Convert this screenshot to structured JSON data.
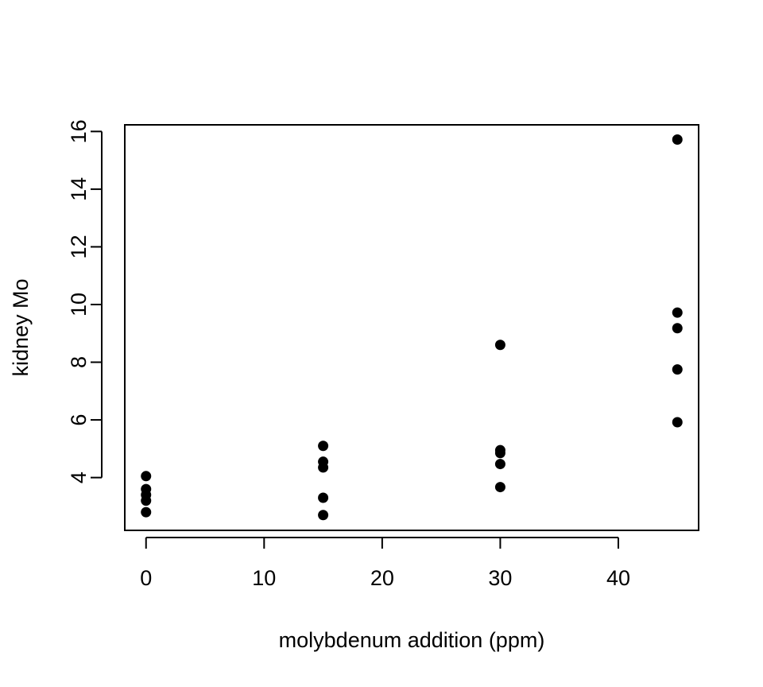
{
  "chart_data": {
    "type": "scatter",
    "title": "",
    "xlabel": "molybdenum addition (ppm)",
    "ylabel": "kidney Mo",
    "xlim": [
      -1.8,
      46.8
    ],
    "ylim": [
      2.17,
      16.23
    ],
    "xticks": [
      0,
      10,
      20,
      30,
      40
    ],
    "yticks": [
      4,
      6,
      8,
      10,
      12,
      14,
      16
    ],
    "grid": false,
    "legend": "none",
    "point_color": "#000000",
    "series": [
      {
        "points": [
          {
            "x": 0,
            "y": 4.05
          },
          {
            "x": 0,
            "y": 3.6
          },
          {
            "x": 0,
            "y": 3.4
          },
          {
            "x": 0,
            "y": 3.2
          },
          {
            "x": 0,
            "y": 2.8
          },
          {
            "x": 15,
            "y": 5.1
          },
          {
            "x": 15,
            "y": 4.55
          },
          {
            "x": 15,
            "y": 4.35
          },
          {
            "x": 15,
            "y": 3.3
          },
          {
            "x": 15,
            "y": 2.7
          },
          {
            "x": 30,
            "y": 8.6
          },
          {
            "x": 30,
            "y": 4.95
          },
          {
            "x": 30,
            "y": 4.85
          },
          {
            "x": 30,
            "y": 4.47
          },
          {
            "x": 30,
            "y": 3.67
          },
          {
            "x": 45,
            "y": 15.72
          },
          {
            "x": 45,
            "y": 9.72
          },
          {
            "x": 45,
            "y": 9.18
          },
          {
            "x": 45,
            "y": 7.75
          },
          {
            "x": 45,
            "y": 5.92
          }
        ]
      }
    ]
  }
}
